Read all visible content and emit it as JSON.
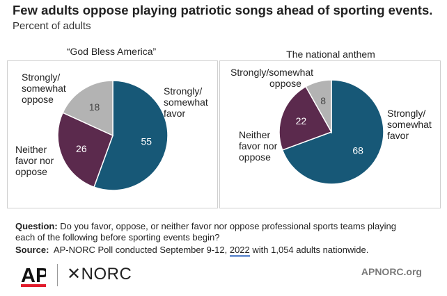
{
  "header": {
    "title": "Few adults oppose playing patriotic songs ahead of sporting events.",
    "subtitle": "Percent of adults"
  },
  "colors": {
    "favor": "#175877",
    "neither": "#5b2a4d",
    "oppose": "#b3b3b3"
  },
  "chart_data": [
    {
      "type": "pie",
      "title": "“God Bless America”",
      "slices": [
        {
          "label": "Strongly/ somewhat favor",
          "value": 55
        },
        {
          "label": "Neither favor nor oppose",
          "value": 26
        },
        {
          "label": "Strongly/ somewhat oppose",
          "value": 18
        }
      ]
    },
    {
      "type": "pie",
      "title": "The national anthem",
      "slices": [
        {
          "label": "Strongly/ somewhat favor",
          "value": 68
        },
        {
          "label": "Neither favor nor oppose",
          "value": 22
        },
        {
          "label": "Strongly/ somewhat oppose",
          "value": 8
        }
      ]
    }
  ],
  "labels": {
    "favor": [
      "Strongly/",
      "somewhat",
      "favor"
    ],
    "neither": [
      "Neither",
      "favor nor",
      "oppose"
    ],
    "oppose": [
      "Strongly/",
      "somewhat",
      "oppose"
    ],
    "oppose_inline": "Strongly/somewhat",
    "oppose_inline2": "oppose"
  },
  "footer": {
    "question_label": "Question:",
    "question_text": "Do you favor, oppose, or neither favor nor oppose professional sports teams playing",
    "question_text2": "each of the following before sporting events begin?",
    "source_label": "Source:",
    "source_text_a": "AP-NORC Poll conducted September 9-12,",
    "source_year": "2022",
    "source_text_b": "with 1,054 adults nationwide."
  },
  "branding": {
    "ap": "AP",
    "norc": "✕NORC",
    "site": "APNORC.org"
  }
}
